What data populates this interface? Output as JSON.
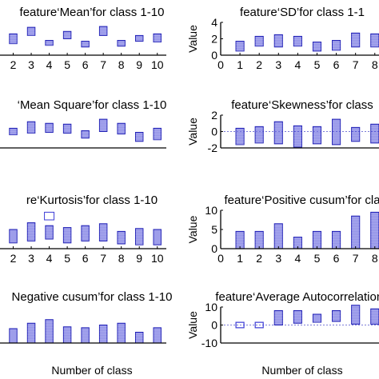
{
  "chart_data": [
    {
      "type": "box",
      "title": "feature‘Mean’for class 1-10",
      "xlabel": "",
      "ylabel": "",
      "x_ticks": [
        "2",
        "3",
        "4",
        "5",
        "6",
        "7",
        "8",
        "9",
        "10"
      ],
      "x_range": [
        1,
        10.5
      ],
      "ylim": [
        0,
        4
      ],
      "y_ticks": [],
      "classes": [
        {
          "class": 2,
          "low": 1.4,
          "high": 2.6
        },
        {
          "class": 3,
          "low": 2.4,
          "high": 3.4
        },
        {
          "class": 4,
          "low": 1.2,
          "high": 1.8
        },
        {
          "class": 5,
          "low": 2.0,
          "high": 2.9
        },
        {
          "class": 6,
          "low": 1.0,
          "high": 1.7
        },
        {
          "class": 7,
          "low": 2.4,
          "high": 3.5
        },
        {
          "class": 8,
          "low": 1.1,
          "high": 1.8
        },
        {
          "class": 9,
          "low": 1.7,
          "high": 2.4
        },
        {
          "class": 10,
          "low": 1.6,
          "high": 2.6
        }
      ]
    },
    {
      "type": "box",
      "title": "feature‘SD’for class 1-1",
      "xlabel": "",
      "ylabel": "Value",
      "x_ticks": [
        "0",
        "1",
        "2",
        "3",
        "4",
        "5",
        "6",
        "7",
        "8"
      ],
      "x_range": [
        0,
        8.3
      ],
      "ylim": [
        0,
        4
      ],
      "y_ticks": [
        "0",
        "2",
        "4"
      ],
      "classes": [
        {
          "class": 1,
          "low": 0.5,
          "high": 1.7
        },
        {
          "class": 2,
          "low": 1.1,
          "high": 2.3
        },
        {
          "class": 3,
          "low": 1.0,
          "high": 2.5
        },
        {
          "class": 4,
          "low": 1.1,
          "high": 2.3
        },
        {
          "class": 5,
          "low": 0.5,
          "high": 1.6
        },
        {
          "class": 6,
          "low": 0.6,
          "high": 1.8
        },
        {
          "class": 7,
          "low": 1.0,
          "high": 2.7
        },
        {
          "class": 8,
          "low": 1.0,
          "high": 2.6
        }
      ]
    },
    {
      "type": "box",
      "title": "‘Mean Square’for class 1-10",
      "xlabel": "",
      "ylabel": "",
      "x_ticks": [],
      "x_range": [
        1,
        10.5
      ],
      "ylim": [
        0,
        4
      ],
      "y_ticks": [],
      "classes": [
        {
          "class": 2,
          "low": 1.6,
          "high": 2.4
        },
        {
          "class": 3,
          "low": 1.8,
          "high": 3.2
        },
        {
          "class": 4,
          "low": 1.9,
          "high": 3.0
        },
        {
          "class": 5,
          "low": 1.8,
          "high": 2.9
        },
        {
          "class": 6,
          "low": 1.2,
          "high": 2.1
        },
        {
          "class": 7,
          "low": 2.0,
          "high": 3.5
        },
        {
          "class": 8,
          "low": 1.7,
          "high": 3.0
        },
        {
          "class": 9,
          "low": 0.8,
          "high": 1.9
        },
        {
          "class": 10,
          "low": 1.0,
          "high": 2.4
        }
      ]
    },
    {
      "type": "box",
      "title": "feature‘Skewness’for class",
      "xlabel": "",
      "ylabel": "Value",
      "x_ticks": [],
      "x_range": [
        0,
        8.3
      ],
      "ylim": [
        -2,
        2
      ],
      "y_ticks": [
        "-2",
        "0",
        "2"
      ],
      "classes": [
        {
          "class": 1,
          "low": -1.6,
          "high": 0.4
        },
        {
          "class": 2,
          "low": -1.4,
          "high": 0.6
        },
        {
          "class": 3,
          "low": -1.5,
          "high": 1.2
        },
        {
          "class": 4,
          "low": -1.9,
          "high": 0.7
        },
        {
          "class": 5,
          "low": -1.5,
          "high": 0.6
        },
        {
          "class": 6,
          "low": -1.6,
          "high": 1.5
        },
        {
          "class": 7,
          "low": -1.2,
          "high": 0.5
        },
        {
          "class": 8,
          "low": -1.4,
          "high": 0.9
        }
      ]
    },
    {
      "type": "box",
      "title": "re‘Kurtosis’for class 1-10",
      "xlabel": "",
      "ylabel": "",
      "x_ticks": [
        "2",
        "3",
        "4",
        "5",
        "6",
        "7",
        "8",
        "9",
        "10"
      ],
      "x_range": [
        1,
        10.5
      ],
      "ylim": [
        0,
        4
      ],
      "y_ticks": [],
      "classes": [
        {
          "class": 2,
          "low": 0.6,
          "high": 2.0
        },
        {
          "class": 3,
          "low": 0.8,
          "high": 2.7
        },
        {
          "class": 4,
          "low": 1.0,
          "high": 2.4
        },
        {
          "class": 5,
          "low": 0.6,
          "high": 2.2
        },
        {
          "class": 6,
          "low": 0.8,
          "high": 2.4
        },
        {
          "class": 7,
          "low": 0.8,
          "high": 2.6
        },
        {
          "class": 8,
          "low": 0.5,
          "high": 1.8
        },
        {
          "class": 9,
          "low": 0.4,
          "high": 2.1
        },
        {
          "class": 10,
          "low": 0.4,
          "high": 2.0
        }
      ],
      "outliers": [
        {
          "class": 4,
          "low": 3.0,
          "high": 3.8
        }
      ]
    },
    {
      "type": "box",
      "title": "feature‘Positive cusum’for cla",
      "xlabel": "",
      "ylabel": "Value",
      "x_ticks": [
        "0",
        "1",
        "2",
        "3",
        "4",
        "5",
        "6",
        "7",
        "8"
      ],
      "x_range": [
        0,
        8.3
      ],
      "ylim": [
        0,
        10
      ],
      "y_ticks": [
        "0",
        "5",
        "10"
      ],
      "classes": [
        {
          "class": 1,
          "low": 0.0,
          "high": 4.5
        },
        {
          "class": 2,
          "low": 0.0,
          "high": 4.5
        },
        {
          "class": 3,
          "low": 0.0,
          "high": 6.5
        },
        {
          "class": 4,
          "low": 0.0,
          "high": 3.0
        },
        {
          "class": 5,
          "low": 0.0,
          "high": 4.5
        },
        {
          "class": 6,
          "low": 0.0,
          "high": 4.5
        },
        {
          "class": 7,
          "low": 0.0,
          "high": 8.5
        },
        {
          "class": 8,
          "low": 0.0,
          "high": 9.5
        }
      ]
    },
    {
      "type": "box",
      "title": "Negative cusum’for class 1-10",
      "xlabel": "Number of class",
      "ylabel": "",
      "x_ticks": [],
      "x_range": [
        1,
        10.5
      ],
      "ylim": [
        0,
        4
      ],
      "y_ticks": [],
      "classes": [
        {
          "class": 2,
          "low": 0.0,
          "high": 1.6
        },
        {
          "class": 3,
          "low": 0.0,
          "high": 2.2
        },
        {
          "class": 4,
          "low": 0.0,
          "high": 2.6
        },
        {
          "class": 5,
          "low": 0.0,
          "high": 1.8
        },
        {
          "class": 6,
          "low": 0.0,
          "high": 1.7
        },
        {
          "class": 7,
          "low": 0.0,
          "high": 2.0
        },
        {
          "class": 8,
          "low": 0.0,
          "high": 2.2
        },
        {
          "class": 9,
          "low": 0.0,
          "high": 1.2
        },
        {
          "class": 10,
          "low": 0.0,
          "high": 1.7
        }
      ]
    },
    {
      "type": "box",
      "title": "feature‘Average Autocorrelation’f",
      "xlabel": "Number of class",
      "ylabel": "Value",
      "x_ticks": [],
      "x_range": [
        0,
        8.3
      ],
      "ylim": [
        -10,
        10
      ],
      "y_ticks": [
        "-10",
        "0",
        "10"
      ],
      "classes": [
        {
          "class": 1,
          "low": -1.5,
          "high": 1.5,
          "hollow": true
        },
        {
          "class": 2,
          "low": -1.5,
          "high": 1.5,
          "hollow": true
        },
        {
          "class": 3,
          "low": 0.0,
          "high": 8.0
        },
        {
          "class": 4,
          "low": 1.0,
          "high": 8.0
        },
        {
          "class": 5,
          "low": 1.5,
          "high": 6.0
        },
        {
          "class": 6,
          "low": 2.0,
          "high": 8.0
        },
        {
          "class": 7,
          "low": 0.5,
          "high": 11.0
        },
        {
          "class": 8,
          "low": 0.5,
          "high": 9.0
        }
      ]
    }
  ]
}
